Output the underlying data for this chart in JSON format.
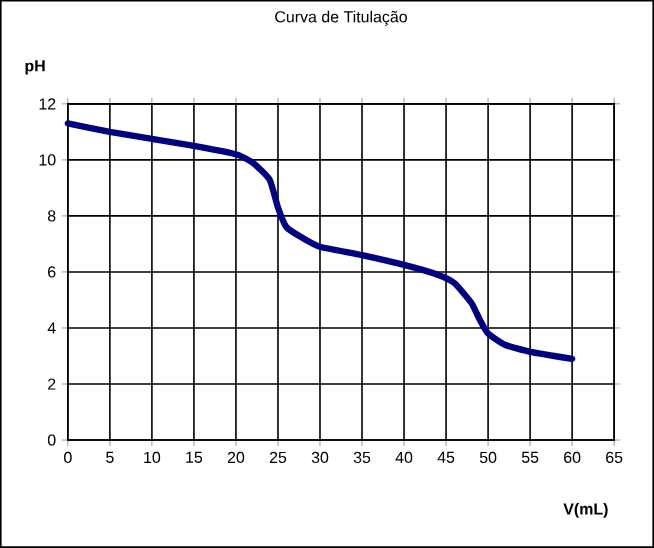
{
  "chart_data": {
    "type": "line",
    "title": "Curva de Titulação",
    "xlabel": "V(mL)",
    "ylabel": "pH",
    "x": [
      0,
      5,
      10,
      15,
      20,
      22,
      24,
      25,
      26,
      28,
      30,
      35,
      40,
      44,
      46,
      48,
      49,
      50,
      52,
      55,
      60
    ],
    "series": [
      {
        "color": "#000080",
        "values": [
          11.3,
          11.0,
          10.75,
          10.5,
          10.2,
          9.9,
          9.3,
          8.3,
          7.6,
          7.2,
          6.9,
          6.6,
          6.25,
          5.9,
          5.6,
          4.9,
          4.3,
          3.8,
          3.4,
          3.15,
          2.9
        ]
      }
    ],
    "xlim": [
      0,
      65
    ],
    "xticks": [
      0,
      5,
      10,
      15,
      20,
      25,
      30,
      35,
      40,
      45,
      50,
      55,
      60,
      65
    ],
    "ylim": [
      0,
      12
    ],
    "yticks": [
      0,
      2,
      4,
      6,
      8,
      10,
      12
    ],
    "grid": true,
    "marker": "none",
    "line_style": "solid"
  }
}
